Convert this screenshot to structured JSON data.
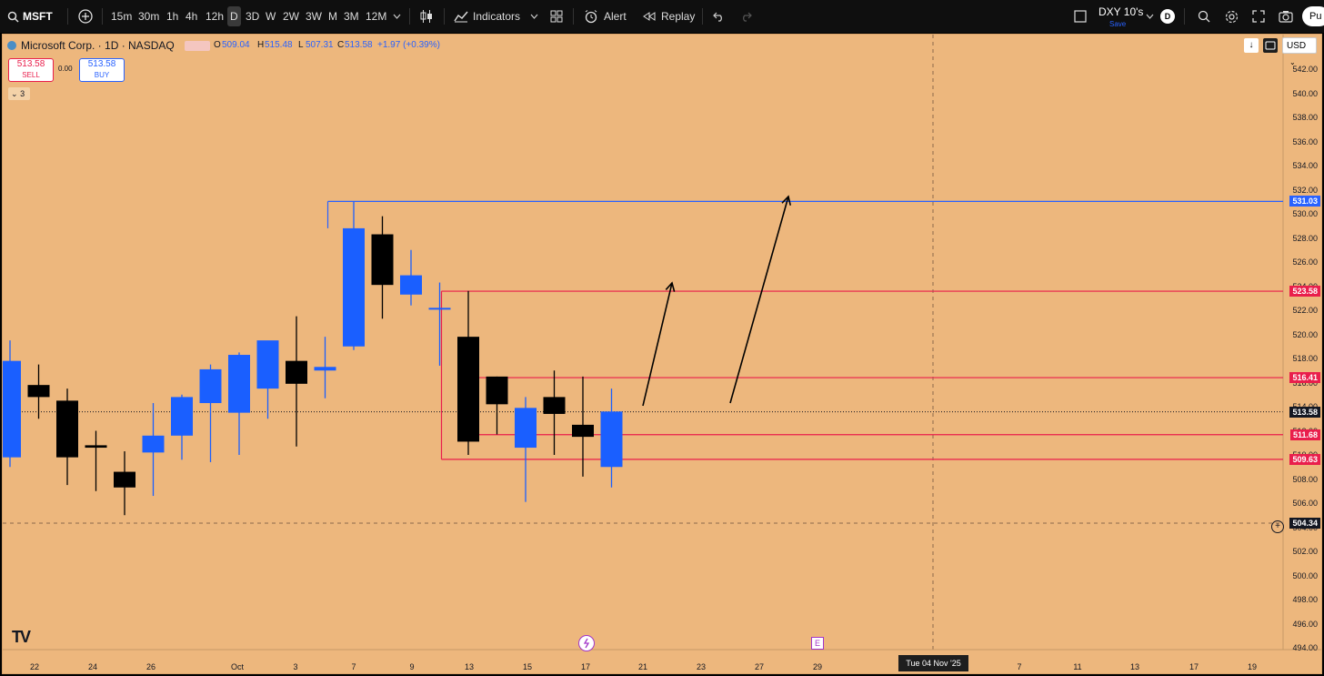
{
  "toolbar": {
    "symbol": "MSFT",
    "intervals": [
      "15m",
      "30m",
      "1h",
      "4h",
      "12h",
      "D",
      "3D",
      "W",
      "2W",
      "3W",
      "M",
      "3M",
      "12M"
    ],
    "selected_interval": "D",
    "indicators_label": "Indicators",
    "alert_label": "Alert",
    "replay_label": "Replay",
    "watch_symbol": "DXY 10's",
    "watch_sub": "Save",
    "avatar_letter": "D",
    "publish_label": "Pu"
  },
  "legend": {
    "title": "Microsoft Corp. · 1D · NASDAQ",
    "o_label": "O",
    "o_val": "509.04",
    "h_label": "H",
    "h_val": "515.48",
    "l_label": "L",
    "l_val": "507.31",
    "c_label": "C",
    "c_val": "513.58",
    "change": "+1.97 (+0.39%)",
    "sell_price": "513.58",
    "sell_label": "SELL",
    "spread": "0.00",
    "buy_price": "513.58",
    "buy_label": "BUY",
    "collapse_count": "3"
  },
  "currency": "USD",
  "price_axis": {
    "ticks": [
      "542.00",
      "540.00",
      "538.00",
      "536.00",
      "534.00",
      "532.00",
      "530.00",
      "528.00",
      "526.00",
      "524.00",
      "522.00",
      "520.00",
      "518.00",
      "516.00",
      "514.00",
      "512.00",
      "510.00",
      "508.00",
      "506.00",
      "504.00",
      "502.00",
      "500.00",
      "498.00",
      "496.00",
      "494.00"
    ],
    "labels": [
      {
        "value": "531.03",
        "color": "#2962ff"
      },
      {
        "value": "523.58",
        "color": "#e91e4c"
      },
      {
        "value": "516.41",
        "color": "#e91e4c"
      },
      {
        "value": "513.58",
        "color": "#131722"
      },
      {
        "value": "511.68",
        "color": "#e91e4c"
      },
      {
        "value": "509.63",
        "color": "#e91e4c"
      },
      {
        "value": "504.34",
        "color": "#131722"
      }
    ]
  },
  "date_axis": [
    "22",
    "24",
    "26",
    "Oct",
    "3",
    "7",
    "9",
    "13",
    "15",
    "17",
    "21",
    "23",
    "27",
    "29",
    "7",
    "11",
    "13",
    "17",
    "19"
  ],
  "crosshair_date": "Tue 04 Nov '25",
  "earnings_marker": "E",
  "logo_text": "TV",
  "colors": {
    "bg": "#edb77d",
    "bull": "#1a5fff",
    "bear": "#000000",
    "resistance": "#e91e4c",
    "target": "#2962ff"
  },
  "chart_data": {
    "type": "candlestick",
    "ylim": [
      494,
      543
    ],
    "candles": [
      {
        "o": 509.8,
        "h": 519.5,
        "l": 509.0,
        "c": 517.8
      },
      {
        "o": 515.8,
        "h": 517.5,
        "l": 513.0,
        "c": 514.8
      },
      {
        "o": 514.5,
        "h": 515.5,
        "l": 507.5,
        "c": 509.8
      },
      {
        "o": 510.8,
        "h": 512.0,
        "l": 507.0,
        "c": 510.6
      },
      {
        "o": 508.6,
        "h": 510.3,
        "l": 505.0,
        "c": 507.3
      },
      {
        "o": 510.2,
        "h": 514.3,
        "l": 506.6,
        "c": 511.6
      },
      {
        "o": 511.6,
        "h": 515.0,
        "l": 509.6,
        "c": 514.8
      },
      {
        "o": 514.3,
        "h": 517.5,
        "l": 509.4,
        "c": 517.1
      },
      {
        "o": 513.5,
        "h": 518.5,
        "l": 510.0,
        "c": 518.3
      },
      {
        "o": 515.5,
        "h": 519.3,
        "l": 513.0,
        "c": 519.5
      },
      {
        "o": 517.8,
        "h": 521.5,
        "l": 510.7,
        "c": 515.9
      },
      {
        "o": 517.0,
        "h": 519.8,
        "l": 514.7,
        "c": 517.3
      },
      {
        "o": 519.0,
        "h": 531.0,
        "l": 518.7,
        "c": 528.8
      },
      {
        "o": 528.3,
        "h": 529.8,
        "l": 521.3,
        "c": 524.1
      },
      {
        "o": 523.3,
        "h": 527.0,
        "l": 522.4,
        "c": 524.9
      },
      {
        "o": 522.2,
        "h": 524.3,
        "l": 517.4,
        "c": 522.2
      },
      {
        "o": 519.8,
        "h": 523.6,
        "l": 510.0,
        "c": 511.1
      },
      {
        "o": 516.5,
        "h": 516.5,
        "l": 511.7,
        "c": 514.2
      },
      {
        "o": 510.6,
        "h": 514.8,
        "l": 506.1,
        "c": 513.9
      },
      {
        "o": 514.8,
        "h": 517.0,
        "l": 510.0,
        "c": 513.4
      },
      {
        "o": 512.5,
        "h": 516.5,
        "l": 508.2,
        "c": 511.5
      },
      {
        "o": 509.0,
        "h": 515.5,
        "l": 507.3,
        "c": 513.6
      }
    ],
    "levels": [
      {
        "value": 531.03,
        "name": "531.03",
        "color": "#2962ff"
      },
      {
        "value": 523.58,
        "name": "523.58",
        "color": "#e91e4c"
      },
      {
        "value": 516.41,
        "name": "516.41",
        "color": "#e91e4c"
      },
      {
        "value": 511.68,
        "name": "511.68",
        "color": "#e91e4c"
      },
      {
        "value": 509.63,
        "name": "509.63",
        "color": "#e91e4c"
      }
    ]
  }
}
